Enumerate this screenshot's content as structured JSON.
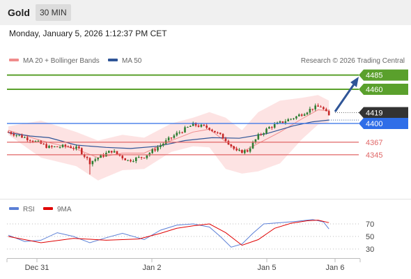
{
  "header": {
    "title": "Gold",
    "interval": "30 MIN"
  },
  "datetime": "Monday, January 5, 2026 1:12:37 PM CET",
  "legend": {
    "items": [
      {
        "label": "MA 20 + Bollinger Bands",
        "color": "#f08c8c"
      },
      {
        "label": "MA 50",
        "color": "#2f5597"
      }
    ],
    "credit": "Research © 2026 Trading Central"
  },
  "rsi_legend": {
    "items": [
      {
        "label": "RSI",
        "color": "#5b7fd6"
      },
      {
        "label": "9MA",
        "color": "#e00000"
      }
    ]
  },
  "colors": {
    "up_candle": "#2e7d32",
    "down_candle": "#c62828",
    "band_fill": "#fde3e3",
    "ma20": "#f08c8c",
    "ma50": "#2f5597",
    "resistance": "#5aa02c",
    "pivot": "#2f6ee8",
    "support": "#e06666",
    "current": "#333333",
    "arrow": "#2f5597"
  },
  "chart_data": [
    {
      "type": "candlestick",
      "x_ticks": [
        "Dec 31",
        "Jan 2",
        "Jan 5",
        "Jan 6"
      ],
      "levels": [
        {
          "value": 4485,
          "label": "4485",
          "kind": "resistance"
        },
        {
          "value": 4460,
          "label": "4460",
          "kind": "resistance"
        },
        {
          "value": 4419,
          "label": "4419",
          "kind": "current"
        },
        {
          "value": 4400,
          "label": "4400",
          "kind": "pivot"
        },
        {
          "value": 4367,
          "label": "4367",
          "kind": "support"
        },
        {
          "value": 4345,
          "label": "4345",
          "kind": "support"
        }
      ],
      "anchors": [
        [
          0,
          4385
        ],
        [
          8,
          4372
        ],
        [
          15,
          4358
        ],
        [
          22,
          4360
        ],
        [
          26,
          4355
        ],
        [
          30,
          4332
        ],
        [
          33,
          4340
        ],
        [
          38,
          4352
        ],
        [
          44,
          4335
        ],
        [
          50,
          4342
        ],
        [
          57,
          4365
        ],
        [
          62,
          4382
        ],
        [
          68,
          4398
        ],
        [
          74,
          4392
        ],
        [
          80,
          4372
        ],
        [
          84,
          4350
        ],
        [
          88,
          4352
        ],
        [
          92,
          4378
        ],
        [
          96,
          4393
        ],
        [
          101,
          4403
        ],
        [
          106,
          4412
        ],
        [
          112,
          4427
        ],
        [
          115,
          4430
        ],
        [
          118,
          4413
        ]
      ],
      "bollinger": [
        [
          0,
          4395,
          4380
        ],
        [
          12,
          4405,
          4340
        ],
        [
          25,
          4385,
          4325
        ],
        [
          33,
          4370,
          4300
        ],
        [
          42,
          4380,
          4318
        ],
        [
          50,
          4375,
          4320
        ],
        [
          60,
          4400,
          4350
        ],
        [
          68,
          4410,
          4360
        ],
        [
          74,
          4420,
          4358
        ],
        [
          80,
          4410,
          4320
        ],
        [
          86,
          4388,
          4312
        ],
        [
          92,
          4420,
          4316
        ],
        [
          100,
          4440,
          4330
        ],
        [
          108,
          4445,
          4372
        ],
        [
          114,
          4450,
          4398
        ],
        [
          118,
          4440,
          4402
        ]
      ],
      "ma20": [
        [
          0,
          4388
        ],
        [
          12,
          4370
        ],
        [
          25,
          4355
        ],
        [
          33,
          4340
        ],
        [
          42,
          4348
        ],
        [
          50,
          4348
        ],
        [
          60,
          4370
        ],
        [
          68,
          4385
        ],
        [
          74,
          4390
        ],
        [
          80,
          4368
        ],
        [
          86,
          4350
        ],
        [
          92,
          4365
        ],
        [
          100,
          4385
        ],
        [
          108,
          4408
        ],
        [
          114,
          4424
        ],
        [
          118,
          4422
        ]
      ],
      "ma50": [
        [
          0,
          4384
        ],
        [
          8,
          4378
        ],
        [
          15,
          4375
        ],
        [
          25,
          4362
        ],
        [
          36,
          4358
        ],
        [
          45,
          4356
        ],
        [
          55,
          4360
        ],
        [
          65,
          4370
        ],
        [
          75,
          4375
        ],
        [
          85,
          4374
        ],
        [
          95,
          4382
        ],
        [
          105,
          4396
        ],
        [
          112,
          4403
        ],
        [
          118,
          4406
        ]
      ]
    },
    {
      "type": "line",
      "title": "RSI",
      "y_ticks": [
        70,
        50,
        30
      ],
      "series": [
        {
          "name": "RSI",
          "values": [
            [
              0,
              52
            ],
            [
              6,
              42
            ],
            [
              12,
              44
            ],
            [
              18,
              56
            ],
            [
              24,
              50
            ],
            [
              30,
              40
            ],
            [
              36,
              48
            ],
            [
              42,
              55
            ],
            [
              50,
              45
            ],
            [
              56,
              60
            ],
            [
              62,
              68
            ],
            [
              68,
              70
            ],
            [
              74,
              65
            ],
            [
              78,
              50
            ],
            [
              82,
              33
            ],
            [
              86,
              38
            ],
            [
              90,
              55
            ],
            [
              94,
              70
            ],
            [
              100,
              72
            ],
            [
              106,
              74
            ],
            [
              112,
              77
            ],
            [
              116,
              73
            ],
            [
              118,
              62
            ]
          ]
        },
        {
          "name": "9MA",
          "values": [
            [
              0,
              50
            ],
            [
              12,
              40
            ],
            [
              24,
              47
            ],
            [
              36,
              44
            ],
            [
              48,
              46
            ],
            [
              56,
              55
            ],
            [
              62,
              63
            ],
            [
              68,
              67
            ],
            [
              74,
              70
            ],
            [
              80,
              56
            ],
            [
              86,
              36
            ],
            [
              92,
              45
            ],
            [
              98,
              63
            ],
            [
              104,
              71
            ],
            [
              110,
              75
            ],
            [
              114,
              76
            ],
            [
              118,
              72
            ]
          ]
        }
      ]
    }
  ]
}
